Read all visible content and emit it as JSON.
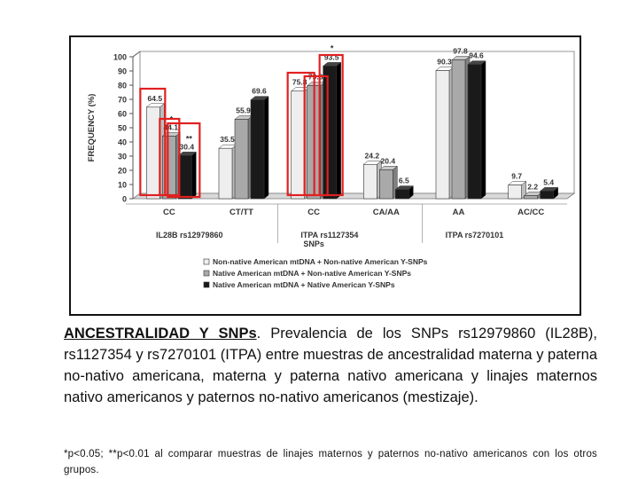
{
  "chart_data": {
    "type": "bar",
    "ylabel": "FREQUENCY (%)",
    "ylim": [
      0,
      100
    ],
    "yticks": [
      "0",
      "10",
      "20",
      "30",
      "40",
      "50",
      "60",
      "70",
      "80",
      "90",
      "100"
    ],
    "categories": [
      "CC",
      "CT/TT",
      "CC",
      "CA/AA",
      "AA",
      "AC/CC"
    ],
    "groups": [
      {
        "label": "IL28B rs12979860",
        "categories": [
          0,
          1
        ]
      },
      {
        "label": "ITPA rs1127354",
        "categories": [
          2,
          3
        ]
      },
      {
        "label": "ITPA rs7270101",
        "categories": [
          4,
          5
        ]
      }
    ],
    "x_caption": "SNPs",
    "series": [
      {
        "name": "Non-native American mtDNA + Non-native American Y-SNPs",
        "color": "#eeeeee",
        "values": [
          64.5,
          35.5,
          75.8,
          24.2,
          90.3,
          9.7
        ],
        "labels": [
          "64.5",
          "35.5",
          "75.8",
          "24.2",
          "90.3",
          "9.7"
        ]
      },
      {
        "name": "Native American mtDNA + Non-native American Y-SNPs",
        "color": "#a9a9a9",
        "values": [
          44.1,
          55.9,
          79.6,
          20.4,
          97.8,
          2.2
        ],
        "labels": [
          "44.1",
          "55.9",
          "79.6",
          "20.4",
          "97.8",
          "2.2"
        ]
      },
      {
        "name": "Native American mtDNA + Native American Y-SNPs",
        "color": "#1a1a1a",
        "values": [
          30.4,
          69.6,
          93.5,
          6.5,
          94.6,
          5.4
        ],
        "labels": [
          "30.4",
          "69.6",
          "93.5",
          "6.5",
          "94.6",
          "5.4"
        ]
      }
    ],
    "annotations": [
      "*",
      "*",
      "**"
    ],
    "highlight_color": "#e02020"
  },
  "caption": {
    "heading": "ANCESTRALIDAD Y SNPs",
    "body": ". Prevalencia de los SNPs rs12979860 (IL28B), rs1127354 y rs7270101 (ITPA) entre muestras de ancestralidad materna y paterna no-nativo americana, materna y paterna nativo americana y linajes maternos nativo americanos y paternos no-nativo americanos (mestizaje).",
    "footnote": "*p<0.05; **p<0.01 al comparar muestras de linajes maternos y paternos no-nativo americanos con los otros grupos."
  }
}
